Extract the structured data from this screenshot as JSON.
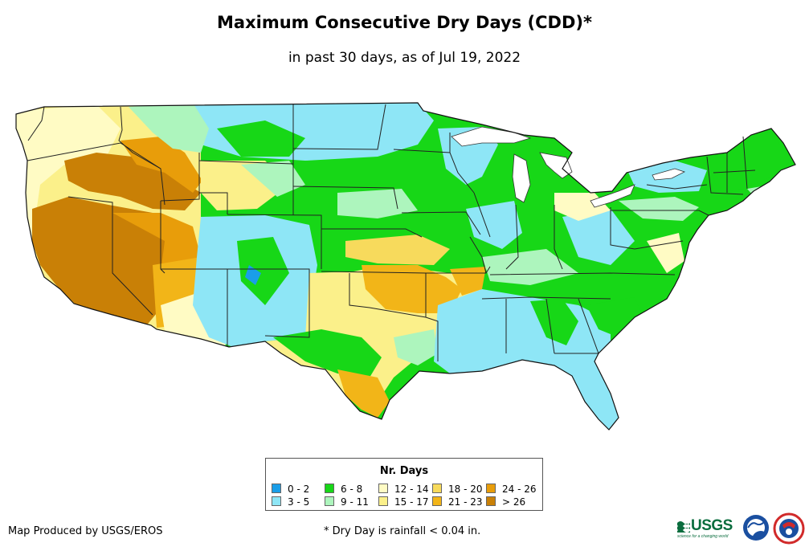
{
  "title": "Maximum Consecutive Dry Days (CDD)*",
  "subtitle": "in past 30 days, as of Jul 19, 2022",
  "legend": {
    "title": "Nr. Days",
    "items": [
      {
        "label": "0 - 2",
        "color": "#1a9ee8"
      },
      {
        "label": "3 - 5",
        "color": "#8ee6f6"
      },
      {
        "label": "6 - 8",
        "color": "#17d717"
      },
      {
        "label": "9 - 11",
        "color": "#adf5bd"
      },
      {
        "label": "12 - 14",
        "color": "#fffbc4"
      },
      {
        "label": "15 - 17",
        "color": "#fbf08a"
      },
      {
        "label": "18 - 20",
        "color": "#f7da5c"
      },
      {
        "label": "21 - 23",
        "color": "#f2b518"
      },
      {
        "label": "24 - 26",
        "color": "#e89d0a"
      },
      {
        "label": "> 26",
        "color": "#c98006"
      }
    ]
  },
  "credit": "Map Produced by USGS/EROS",
  "footnote": "* Dry Day is rainfall < 0.04 in.",
  "logos": {
    "usgs_text": "USGS",
    "usgs_tagline": "science for a changing world",
    "noaa_text": "noaa",
    "usgs_color": "#0a6d3e",
    "noaa_color": "#1a4fa0",
    "nws_color": "#d12a2a"
  }
}
